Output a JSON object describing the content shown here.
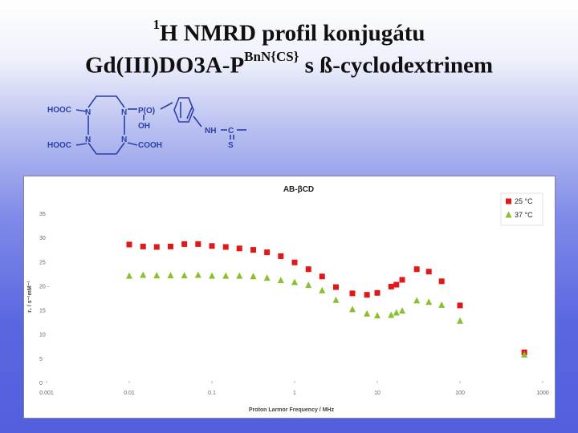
{
  "slide": {
    "title_nucleus_sup": "1",
    "title_line1": "H NMRD profil konjugátu",
    "title_line2_main": "Gd(III)DO3A-P",
    "title_line2_sup": "BnN{CS}",
    "title_line2_end": " s ß-cyclodextrinem"
  },
  "structure": {
    "labels": {
      "hooc_top": "HOOC",
      "hooc_bottom": "HOOC",
      "n1": "N",
      "n2": "N",
      "n3": "N",
      "n4": "N",
      "po": "P(O)",
      "oh": "OH",
      "cooh": "COOH",
      "nh": "NH",
      "c": "C",
      "s": "S"
    },
    "color": "#2a3ea8"
  },
  "chart_data": {
    "type": "scatter",
    "title": "AB-βCD",
    "xlabel": "Proton Larmor Frequency / MHz",
    "ylabel": "r₁ / s⁻¹mM⁻¹",
    "xscale": "log",
    "xlim": [
      0.001,
      1000
    ],
    "ylim": [
      0,
      35
    ],
    "x_tick_labels": [
      "0.001",
      "0.01",
      "0.1",
      "1",
      "10",
      "100",
      "1000"
    ],
    "y_tick_labels": [
      "0",
      "5",
      "10",
      "15",
      "20 -",
      "25",
      "30",
      "35"
    ],
    "legend_position": "top-right",
    "series": [
      {
        "name": "25 °C",
        "marker": "square",
        "color": "#e01818",
        "x": [
          0.01,
          0.0147,
          0.0215,
          0.0316,
          0.0464,
          0.0681,
          0.1,
          0.147,
          0.215,
          0.316,
          0.464,
          0.681,
          1.0,
          1.47,
          2.15,
          3.16,
          5.0,
          7.5,
          10.0,
          14.7,
          17.0,
          20.0,
          30.0,
          42.0,
          60.0,
          100.0,
          600.0
        ],
        "values": [
          28.7,
          28.3,
          28.2,
          28.3,
          28.8,
          28.8,
          28.4,
          28.2,
          27.9,
          27.6,
          27.1,
          26.3,
          25.0,
          23.6,
          22.1,
          19.9,
          18.6,
          18.3,
          18.7,
          20.0,
          20.4,
          21.4,
          23.6,
          23.1,
          21.1,
          16.1,
          6.4
        ]
      },
      {
        "name": "37 °C",
        "marker": "triangle",
        "color": "#88c030",
        "x": [
          0.01,
          0.0147,
          0.0215,
          0.0316,
          0.0464,
          0.0681,
          0.1,
          0.147,
          0.215,
          0.316,
          0.464,
          0.681,
          1.0,
          1.47,
          2.15,
          3.16,
          5.0,
          7.5,
          10.0,
          14.7,
          17.0,
          20.0,
          30.0,
          42.0,
          60.0,
          100.0,
          600.0
        ],
        "values": [
          22.2,
          22.4,
          22.3,
          22.3,
          22.3,
          22.4,
          22.2,
          22.2,
          22.2,
          22.1,
          21.8,
          21.3,
          20.9,
          20.3,
          19.2,
          17.2,
          15.3,
          14.4,
          14.0,
          14.1,
          14.6,
          15.0,
          17.1,
          16.8,
          16.2,
          12.9,
          5.9
        ]
      }
    ]
  }
}
